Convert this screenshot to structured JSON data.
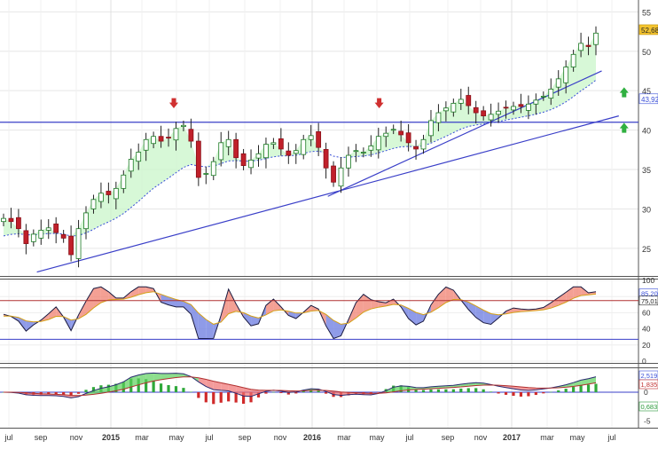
{
  "chart_data": [
    {
      "panel": "price",
      "type": "candlestick",
      "y_axis": {
        "ylim": [
          21.5,
          56.5
        ],
        "ticks": [
          25,
          30,
          35,
          40,
          45,
          50,
          55
        ],
        "side": "right"
      },
      "x_axis_ticks": [
        "jul",
        "sep",
        "nov",
        "2015",
        "mar",
        "may",
        "jul",
        "sep",
        "nov",
        "2016",
        "mar",
        "may",
        "jul",
        "sep",
        "nov",
        "2017",
        "mar",
        "may",
        "jul"
      ],
      "candle_closes": [
        28.8,
        28.4,
        27.5,
        25.6,
        26.8,
        27.3,
        27.6,
        27.0,
        26.3,
        24.2,
        27.5,
        29.5,
        31.2,
        32.0,
        31.8,
        32.6,
        34.3,
        36.3,
        37.2,
        38.8,
        39.2,
        38.6,
        39.0,
        40.2,
        40.6,
        38.6,
        34.0,
        34.5,
        36.0,
        38.4,
        38.8,
        36.5,
        35.5,
        36.2,
        37.0,
        38.2,
        38.4,
        37.6,
        36.8,
        37.4,
        38.8,
        39.3,
        37.8,
        35.2,
        33.4,
        35.2,
        36.8,
        37.4,
        37.2,
        38.0,
        39.2,
        39.6,
        40.1,
        39.4,
        38.4,
        37.6,
        38.8,
        41.2,
        42.2,
        42.8,
        43.4,
        43.9,
        43.1,
        42.2,
        41.8,
        42.0,
        42.4,
        42.8,
        43.0,
        43.0,
        43.3,
        43.8,
        44.3,
        45.2,
        46.5,
        48.0,
        49.6,
        51.0,
        50.6,
        52.3
      ],
      "moving_average_30w_label": "43,92",
      "last_price_label": "52,68",
      "horizontal_resistance": 41.0,
      "trendlines": [
        {
          "from": [
            "2014-09",
            22.0
          ],
          "to": [
            "2017-07",
            41.8
          ]
        },
        {
          "from": [
            "2016-02",
            31.6
          ],
          "to": [
            "2017-06",
            47.5
          ]
        }
      ],
      "signal_arrows": [
        {
          "date": "2015-05",
          "direction": "down"
        },
        {
          "date": "2016-05",
          "direction": "down"
        },
        {
          "date": "2017-07",
          "direction": "up"
        },
        {
          "date": "2017-07",
          "direction": "up"
        }
      ]
    },
    {
      "panel": "oscillator",
      "type": "line",
      "y_axis": {
        "ylim": [
          0,
          100
        ],
        "ticks": [
          0,
          20,
          40,
          60,
          80,
          100
        ]
      },
      "reference_lines": [
        75,
        27
      ],
      "value_labels": [
        "85,20",
        "75,01"
      ]
    },
    {
      "panel": "momentum",
      "type": "area+bar",
      "y_axis": {
        "ticks": [
          0,
          -5
        ]
      },
      "value_labels": [
        "2,519",
        "1,835",
        "0,683"
      ]
    }
  ]
}
